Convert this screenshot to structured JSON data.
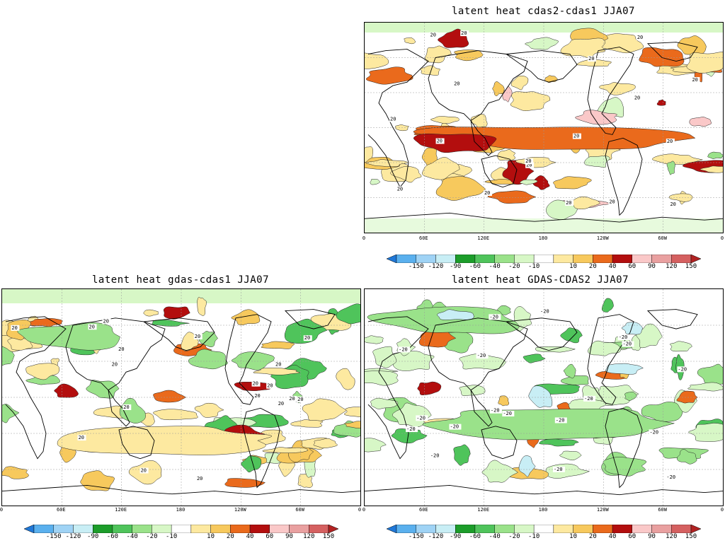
{
  "colorbar": {
    "labels": [
      "-150",
      "-120",
      "-90",
      "-60",
      "-40",
      "-20",
      "-10",
      "10",
      "20",
      "40",
      "60",
      "90",
      "120",
      "150"
    ],
    "colors": [
      "#1f78d8",
      "#5ab0ee",
      "#9fd3f5",
      "#c8eef5",
      "#1c9d2a",
      "#4fc45b",
      "#9ae28a",
      "#d7f7c6",
      "#ffffff",
      "#fde9a0",
      "#f7c95d",
      "#ea6a1c",
      "#b30e0e",
      "#fac8c8",
      "#e9a0a0",
      "#d56060",
      "#b22222"
    ]
  },
  "panels": [
    {
      "id": "top-right",
      "title": "latent heat cdas2-cdas1 JJA07",
      "x_ticks": [
        "0",
        "60E",
        "120E",
        "180",
        "120W",
        "60W",
        "0"
      ],
      "contour_label": "20",
      "scheme": "warm"
    },
    {
      "id": "bottom-left",
      "title": "latent heat gdas-cdas1 JJA07",
      "x_ticks": [
        "0",
        "60E",
        "120E",
        "180",
        "120W",
        "60W",
        "0"
      ],
      "contour_label": "20",
      "scheme": "mixed"
    },
    {
      "id": "bottom-right",
      "title": "latent heat GDAS-CDAS2 JJA07",
      "x_ticks": [
        "0",
        "60E",
        "120E",
        "180",
        "120W",
        "60W",
        "0"
      ],
      "contour_label": "-20",
      "scheme": "cool"
    }
  ]
}
